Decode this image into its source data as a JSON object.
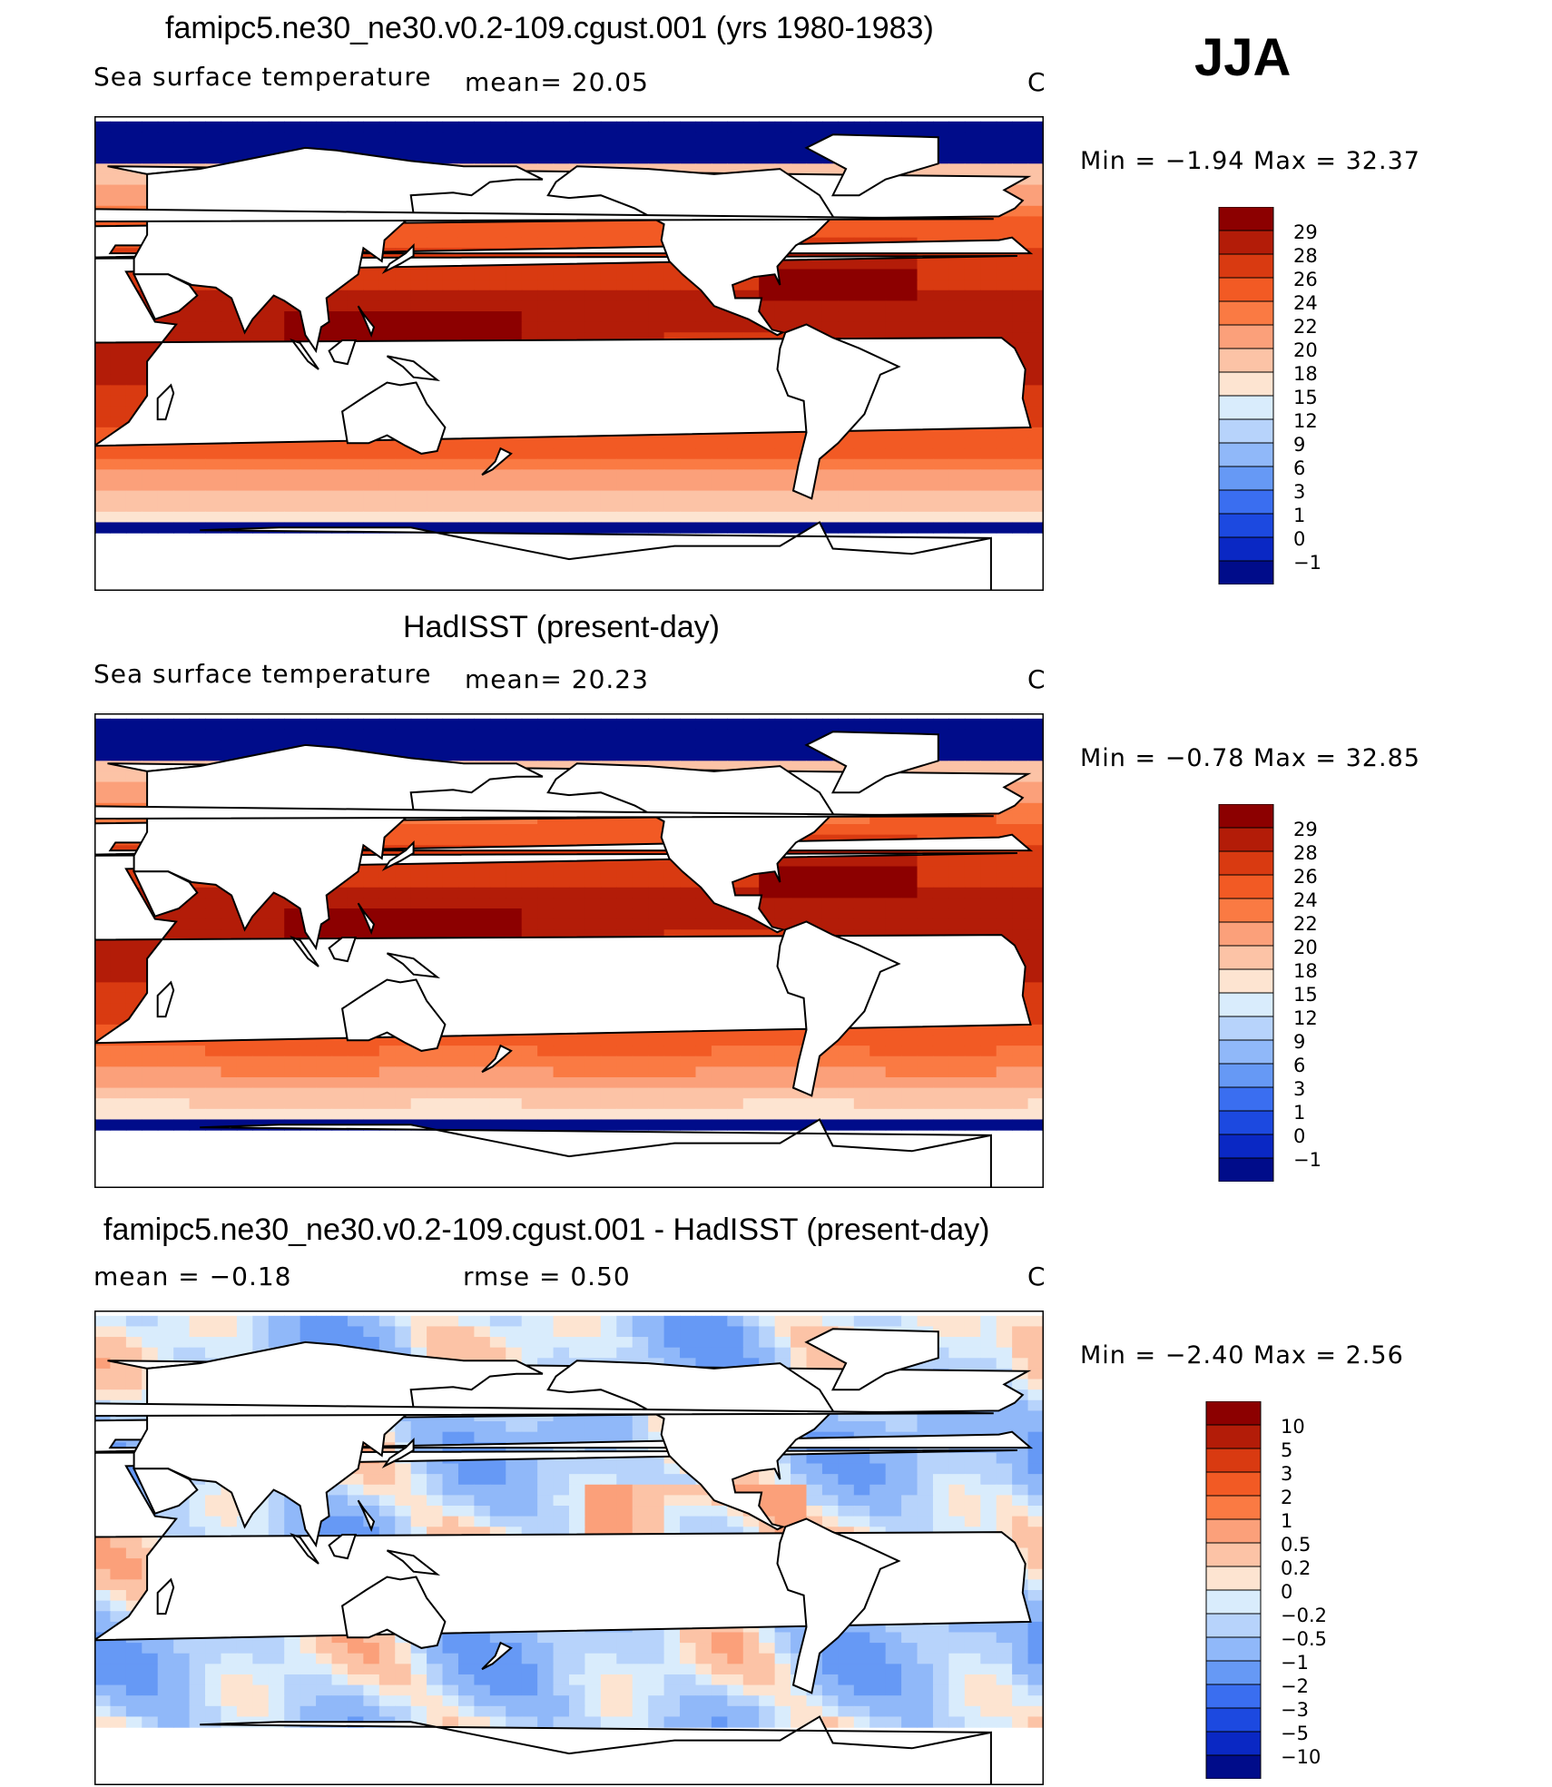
{
  "season_label": "JJA",
  "land_color": "#ffffff",
  "coast_color": "#000000",
  "chart_data": [
    {
      "type": "heatmap",
      "title": "famipc5.ne30_ne30.v0.2-109.cgust.001 (yrs 1980-1983)",
      "variable_label": "Sea surface temperature",
      "stat_text": "mean=   20.05",
      "units": "C",
      "min_max_text": "Min  =   −1.94  Max  =    32.37",
      "field": "sst_model",
      "colorbar": {
        "tick_labels": [
          "29",
          "28",
          "26",
          "24",
          "22",
          "20",
          "18",
          "15",
          "12",
          "9",
          "6",
          "3",
          "1",
          "0",
          "−1"
        ],
        "colors": [
          "#8c0000",
          "#b31c08",
          "#d93a11",
          "#f25a24",
          "#fa7a43",
          "#fba07a",
          "#fcc3a6",
          "#fde4d1",
          "#d9ecfc",
          "#b7d3fb",
          "#90b8f9",
          "#6699f5",
          "#3a6ef0",
          "#1c49e0",
          "#0a28c4",
          "#000c8a"
        ]
      }
    },
    {
      "type": "heatmap",
      "title": "HadISST (present-day)",
      "variable_label": "Sea surface temperature",
      "stat_text": "mean=   20.23",
      "units": "C",
      "min_max_text": "Min  =   −0.78  Max  =    32.85",
      "field": "sst_obs",
      "colorbar": {
        "tick_labels": [
          "29",
          "28",
          "26",
          "24",
          "22",
          "20",
          "18",
          "15",
          "12",
          "9",
          "6",
          "3",
          "1",
          "0",
          "−1"
        ],
        "colors": [
          "#8c0000",
          "#b31c08",
          "#d93a11",
          "#f25a24",
          "#fa7a43",
          "#fba07a",
          "#fcc3a6",
          "#fde4d1",
          "#d9ecfc",
          "#b7d3fb",
          "#90b8f9",
          "#6699f5",
          "#3a6ef0",
          "#1c49e0",
          "#0a28c4",
          "#000c8a"
        ]
      }
    },
    {
      "type": "heatmap",
      "title": "famipc5.ne30_ne30.v0.2-109.cgust.001 - HadISST (present-day)",
      "variable_label": "mean  =   −0.18",
      "stat_text": "rmse  =    0.50",
      "units": "C",
      "min_max_text": "Min  =   −2.40  Max  =     2.56",
      "field": "sst_diff",
      "colorbar": {
        "tick_labels": [
          "10",
          "5",
          "3",
          "2",
          "1",
          "0.5",
          "0.2",
          "0",
          "−0.2",
          "−0.5",
          "−1",
          "−2",
          "−3",
          "−5",
          "−10"
        ],
        "colors": [
          "#8c0000",
          "#b31c08",
          "#d93a11",
          "#f25a24",
          "#fa7a43",
          "#fba07a",
          "#fcc3a6",
          "#fde4d1",
          "#d9ecfc",
          "#b7d3fb",
          "#90b8f9",
          "#6699f5",
          "#3a6ef0",
          "#1c49e0",
          "#0a28c4",
          "#000c8a"
        ]
      }
    }
  ]
}
